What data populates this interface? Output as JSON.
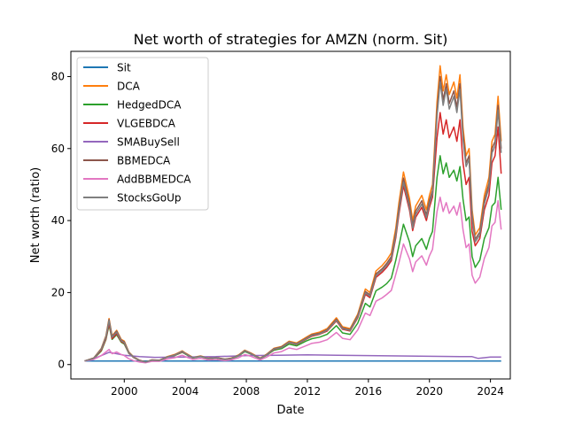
{
  "chart_data": {
    "type": "line",
    "title": "Net worth of strategies for AMZN (norm. Sit)",
    "xlabel": "Date",
    "ylabel": "Net worth (ratio)",
    "xlim": [
      1996.5,
      2025.3
    ],
    "ylim": [
      -4,
      87
    ],
    "xticks": [
      2000,
      2004,
      2008,
      2012,
      2016,
      2020,
      2024
    ],
    "xtick_labels": [
      "2000",
      "2004",
      "2008",
      "2012",
      "2016",
      "2020",
      "2024"
    ],
    "yticks": [
      0,
      20,
      40,
      60,
      80
    ],
    "ytick_labels": [
      "0",
      "20",
      "40",
      "60",
      "80"
    ],
    "grid": false,
    "legend": "upper-left",
    "series": [
      {
        "name": "Sit",
        "color": "#1f77b4",
        "x": [
          1997.4,
          1998.0,
          2002.0,
          2010.0,
          2018.0,
          2024.7
        ],
        "y": [
          1.0,
          1.0,
          1.0,
          1.0,
          1.0,
          1.0
        ]
      },
      {
        "name": "DCA",
        "color": "#ff7f0e",
        "x": [
          1997.4,
          1998.0,
          1998.5,
          1998.8,
          1999.0,
          1999.2,
          1999.5,
          1999.8,
          2000.0,
          2000.3,
          2000.6,
          2001.0,
          2001.4,
          2001.8,
          2002.3,
          2002.8,
          2003.3,
          2003.8,
          2004.0,
          2004.5,
          2005.0,
          2005.5,
          2006.0,
          2006.6,
          2007.0,
          2007.5,
          2007.9,
          2008.3,
          2008.9,
          2009.3,
          2009.8,
          2010.3,
          2010.8,
          2011.3,
          2011.9,
          2012.3,
          2012.8,
          2013.3,
          2013.9,
          2014.3,
          2014.8,
          2015.3,
          2015.8,
          2016.1,
          2016.5,
          2016.9,
          2017.2,
          2017.5,
          2017.8,
          2018.0,
          2018.3,
          2018.7,
          2018.9,
          2019.1,
          2019.5,
          2019.8,
          2020.0,
          2020.2,
          2020.5,
          2020.7,
          2020.9,
          2021.1,
          2021.3,
          2021.6,
          2021.8,
          2022.0,
          2022.2,
          2022.4,
          2022.6,
          2022.8,
          2023.0,
          2023.3,
          2023.6,
          2023.9,
          2024.1,
          2024.3,
          2024.5,
          2024.7
        ],
        "y": [
          1.0,
          1.8,
          4.5,
          8.0,
          12.8,
          8.0,
          9.5,
          7.0,
          6.5,
          3.5,
          2.2,
          1.2,
          0.7,
          1.3,
          1.2,
          2.2,
          2.8,
          3.8,
          3.2,
          2.0,
          2.4,
          1.8,
          2.0,
          1.5,
          1.8,
          2.7,
          4.0,
          3.2,
          1.8,
          2.8,
          4.5,
          5.0,
          6.5,
          6.0,
          7.5,
          8.5,
          9.0,
          10.0,
          13.0,
          10.5,
          10.0,
          14.0,
          21.0,
          20.0,
          26.0,
          27.5,
          29.0,
          31.0,
          38.0,
          45.0,
          53.5,
          46.0,
          40.0,
          44.0,
          47.0,
          43.0,
          47.0,
          50.0,
          73.0,
          83.0,
          76.0,
          80.5,
          75.0,
          78.5,
          74.0,
          80.5,
          66.0,
          58.0,
          60.0,
          43.0,
          36.0,
          38.0,
          47.0,
          52.0,
          62.0,
          64.0,
          74.5,
          62.0
        ]
      },
      {
        "name": "HedgedDCA",
        "color": "#2ca02c",
        "x": [
          1997.4,
          1998.0,
          1998.5,
          1998.8,
          1999.0,
          1999.2,
          1999.5,
          1999.8,
          2000.0,
          2000.3,
          2000.6,
          2001.0,
          2001.4,
          2001.8,
          2002.3,
          2002.8,
          2003.3,
          2003.8,
          2004.0,
          2004.5,
          2005.0,
          2005.5,
          2006.0,
          2006.6,
          2007.0,
          2007.5,
          2007.9,
          2008.3,
          2008.9,
          2009.3,
          2009.8,
          2010.3,
          2010.8,
          2011.3,
          2011.9,
          2012.3,
          2012.8,
          2013.3,
          2013.9,
          2014.3,
          2014.8,
          2015.3,
          2015.8,
          2016.1,
          2016.5,
          2016.9,
          2017.2,
          2017.5,
          2017.8,
          2018.0,
          2018.3,
          2018.7,
          2018.9,
          2019.1,
          2019.5,
          2019.8,
          2020.0,
          2020.2,
          2020.5,
          2020.7,
          2020.9,
          2021.1,
          2021.3,
          2021.6,
          2021.8,
          2022.0,
          2022.2,
          2022.4,
          2022.6,
          2022.8,
          2023.0,
          2023.3,
          2023.6,
          2023.9,
          2024.1,
          2024.3,
          2024.5,
          2024.7
        ],
        "y": [
          1.0,
          1.6,
          3.8,
          7.0,
          11.0,
          7.0,
          8.3,
          6.2,
          5.7,
          3.1,
          2.0,
          1.1,
          0.6,
          1.2,
          1.1,
          2.0,
          2.5,
          3.4,
          2.9,
          1.8,
          2.2,
          1.6,
          1.8,
          1.4,
          1.6,
          2.4,
          3.6,
          2.9,
          1.6,
          2.5,
          4.0,
          4.4,
          5.7,
          5.2,
          6.5,
          7.2,
          7.6,
          8.4,
          10.8,
          8.8,
          8.4,
          11.5,
          17.0,
          16.0,
          20.5,
          21.5,
          22.5,
          24.0,
          29.0,
          33.0,
          39.0,
          34.0,
          30.0,
          33.0,
          35.0,
          32.0,
          35.0,
          37.0,
          52.0,
          58.0,
          53.0,
          56.0,
          52.0,
          54.0,
          51.0,
          55.0,
          46.0,
          40.0,
          41.0,
          30.0,
          27.0,
          29.0,
          35.0,
          38.0,
          44.0,
          45.0,
          52.0,
          43.0
        ]
      },
      {
        "name": "VLGEBDCA",
        "color": "#d62728",
        "x": [
          1997.4,
          1998.0,
          1998.5,
          1998.8,
          1999.0,
          1999.2,
          1999.5,
          1999.8,
          2000.0,
          2000.3,
          2000.6,
          2001.0,
          2001.4,
          2001.8,
          2002.3,
          2002.8,
          2003.3,
          2003.8,
          2004.0,
          2004.5,
          2005.0,
          2005.5,
          2006.0,
          2006.6,
          2007.0,
          2007.5,
          2007.9,
          2008.3,
          2008.9,
          2009.3,
          2009.8,
          2010.3,
          2010.8,
          2011.3,
          2011.9,
          2012.3,
          2012.8,
          2013.3,
          2013.9,
          2014.3,
          2014.8,
          2015.3,
          2015.8,
          2016.1,
          2016.5,
          2016.9,
          2017.2,
          2017.5,
          2017.8,
          2018.0,
          2018.3,
          2018.7,
          2018.9,
          2019.1,
          2019.5,
          2019.8,
          2020.0,
          2020.2,
          2020.5,
          2020.7,
          2020.9,
          2021.1,
          2021.3,
          2021.6,
          2021.8,
          2022.0,
          2022.2,
          2022.4,
          2022.6,
          2022.8,
          2023.0,
          2023.3,
          2023.6,
          2023.9,
          2024.1,
          2024.3,
          2024.5,
          2024.7
        ],
        "y": [
          1.0,
          1.7,
          4.0,
          7.2,
          11.5,
          7.2,
          8.6,
          6.4,
          5.9,
          3.2,
          2.0,
          1.1,
          0.6,
          1.2,
          1.1,
          2.0,
          2.6,
          3.5,
          3.0,
          1.9,
          2.3,
          1.7,
          1.9,
          1.4,
          1.7,
          2.5,
          3.8,
          3.0,
          1.7,
          2.6,
          4.2,
          4.7,
          6.1,
          5.6,
          7.0,
          7.9,
          8.4,
          9.3,
          12.1,
          9.8,
          9.3,
          13.0,
          19.5,
          18.6,
          24.2,
          25.6,
          27.0,
          28.8,
          35.3,
          41.8,
          49.7,
          42.8,
          37.2,
          40.9,
          43.7,
          40.0,
          43.7,
          46.5,
          63.0,
          70.0,
          64.0,
          68.0,
          63.0,
          66.0,
          62.0,
          68.0,
          56.0,
          50.0,
          52.0,
          37.0,
          33.0,
          35.0,
          43.0,
          47.0,
          56.0,
          58.0,
          66.0,
          53.0
        ]
      },
      {
        "name": "SMABuySell",
        "color": "#9467bd",
        "x": [
          1997.4,
          1998.0,
          1998.5,
          1999.0,
          1999.5,
          2000.0,
          2001.0,
          2002.0,
          2004.0,
          2006.0,
          2008.0,
          2010.0,
          2012.0,
          2014.0,
          2016.0,
          2018.0,
          2020.0,
          2022.0,
          2022.8,
          2023.2,
          2024.0,
          2024.7
        ],
        "y": [
          1.0,
          1.6,
          2.5,
          3.4,
          3.0,
          2.6,
          2.2,
          2.0,
          2.1,
          2.2,
          2.5,
          2.6,
          2.7,
          2.6,
          2.5,
          2.4,
          2.3,
          2.2,
          2.2,
          1.7,
          2.1,
          2.1
        ]
      },
      {
        "name": "BBMEDCA",
        "color": "#8c564b",
        "x": [
          1997.4,
          1998.0,
          1998.5,
          1998.8,
          1999.0,
          1999.2,
          1999.5,
          1999.8,
          2000.0,
          2000.3,
          2000.6,
          2001.0,
          2001.4,
          2001.8,
          2002.3,
          2002.8,
          2003.3,
          2003.8,
          2004.0,
          2004.5,
          2005.0,
          2005.5,
          2006.0,
          2006.6,
          2007.0,
          2007.5,
          2007.9,
          2008.3,
          2008.9,
          2009.3,
          2009.8,
          2010.3,
          2010.8,
          2011.3,
          2011.9,
          2012.3,
          2012.8,
          2013.3,
          2013.9,
          2014.3,
          2014.8,
          2015.3,
          2015.8,
          2016.1,
          2016.5,
          2016.9,
          2017.2,
          2017.5,
          2017.8,
          2018.0,
          2018.3,
          2018.7,
          2018.9,
          2019.1,
          2019.5,
          2019.8,
          2020.0,
          2020.2,
          2020.5,
          2020.7,
          2020.9,
          2021.1,
          2021.3,
          2021.6,
          2021.8,
          2022.0,
          2022.2,
          2022.4,
          2022.6,
          2022.8,
          2023.0,
          2023.3,
          2023.6,
          2023.9,
          2024.1,
          2024.3,
          2024.5,
          2024.7
        ],
        "y": [
          1.0,
          1.8,
          4.4,
          7.8,
          12.5,
          7.8,
          9.3,
          6.8,
          6.3,
          3.4,
          2.1,
          1.2,
          0.7,
          1.3,
          1.2,
          2.1,
          2.7,
          3.7,
          3.1,
          1.9,
          2.3,
          1.7,
          1.9,
          1.5,
          1.7,
          2.6,
          3.9,
          3.1,
          1.7,
          2.7,
          4.4,
          4.9,
          6.3,
          5.8,
          7.3,
          8.3,
          8.7,
          9.7,
          12.6,
          10.2,
          9.7,
          13.6,
          20.3,
          19.4,
          25.2,
          26.6,
          28.1,
          30.0,
          36.8,
          43.5,
          51.8,
          44.5,
          38.7,
          42.6,
          45.5,
          41.6,
          45.5,
          48.4,
          70.5,
          80.0,
          73.5,
          78.0,
          72.5,
          76.0,
          71.5,
          78.0,
          64.0,
          56.0,
          58.0,
          41.5,
          34.8,
          36.8,
          45.5,
          50.3,
          60.0,
          62.0,
          72.0,
          60.0
        ]
      },
      {
        "name": "AddBBMEDCA",
        "color": "#e377c2",
        "x": [
          1997.4,
          1998.0,
          1998.5,
          1998.8,
          1999.0,
          1999.2,
          1999.5,
          1999.8,
          2000.0,
          2000.3,
          2000.6,
          2001.0,
          2001.4,
          2001.8,
          2002.3,
          2002.8,
          2003.3,
          2003.8,
          2004.0,
          2004.5,
          2005.0,
          2005.5,
          2006.0,
          2006.6,
          2007.0,
          2007.5,
          2007.9,
          2008.3,
          2008.9,
          2009.3,
          2009.8,
          2010.3,
          2010.8,
          2011.3,
          2011.9,
          2012.3,
          2012.8,
          2013.3,
          2013.9,
          2014.3,
          2014.8,
          2015.3,
          2015.8,
          2016.1,
          2016.5,
          2016.9,
          2017.2,
          2017.5,
          2017.8,
          2018.0,
          2018.3,
          2018.7,
          2018.9,
          2019.1,
          2019.5,
          2019.8,
          2020.0,
          2020.2,
          2020.5,
          2020.7,
          2020.9,
          2021.1,
          2021.3,
          2021.6,
          2021.8,
          2022.0,
          2022.2,
          2022.4,
          2022.6,
          2022.8,
          2023.0,
          2023.3,
          2023.6,
          2023.9,
          2024.1,
          2024.3,
          2024.5,
          2024.7
        ],
        "y": [
          1.0,
          1.4,
          2.5,
          3.5,
          4.2,
          3.0,
          3.5,
          2.8,
          2.5,
          1.6,
          1.1,
          0.7,
          0.5,
          0.9,
          0.9,
          1.5,
          1.9,
          2.6,
          2.2,
          1.4,
          1.7,
          1.3,
          1.4,
          1.1,
          1.3,
          1.9,
          2.8,
          2.3,
          1.3,
          2.0,
          3.2,
          3.6,
          4.6,
          4.2,
          5.2,
          5.9,
          6.2,
          6.9,
          8.9,
          7.3,
          6.9,
          9.6,
          14.3,
          13.6,
          17.6,
          18.5,
          19.5,
          20.6,
          25.1,
          28.3,
          33.5,
          29.3,
          25.8,
          28.5,
          30.2,
          27.6,
          30.2,
          32.0,
          42.5,
          46.5,
          42.5,
          45.0,
          42.0,
          44.0,
          41.5,
          45.0,
          37.5,
          32.5,
          33.5,
          24.8,
          22.6,
          24.3,
          29.5,
          32.5,
          38.5,
          39.5,
          45.5,
          37.5
        ]
      },
      {
        "name": "StocksGoUp",
        "color": "#7f7f7f",
        "x": [
          1997.4,
          1998.0,
          1998.5,
          1998.8,
          1999.0,
          1999.2,
          1999.5,
          1999.8,
          2000.0,
          2000.3,
          2000.6,
          2001.0,
          2001.4,
          2001.8,
          2002.3,
          2002.8,
          2003.3,
          2003.8,
          2004.0,
          2004.5,
          2005.0,
          2005.5,
          2006.0,
          2006.6,
          2007.0,
          2007.5,
          2007.9,
          2008.3,
          2008.9,
          2009.3,
          2009.8,
          2010.3,
          2010.8,
          2011.3,
          2011.9,
          2012.3,
          2012.8,
          2013.3,
          2013.9,
          2014.3,
          2014.8,
          2015.3,
          2015.8,
          2016.1,
          2016.5,
          2016.9,
          2017.2,
          2017.5,
          2017.8,
          2018.0,
          2018.3,
          2018.7,
          2018.9,
          2019.1,
          2019.5,
          2019.8,
          2020.0,
          2020.2,
          2020.5,
          2020.7,
          2020.9,
          2021.1,
          2021.3,
          2021.6,
          2021.8,
          2022.0,
          2022.2,
          2022.4,
          2022.6,
          2022.8,
          2023.0,
          2023.3,
          2023.6,
          2023.9,
          2024.1,
          2024.3,
          2024.5,
          2024.7
        ],
        "y": [
          1.0,
          1.7,
          4.3,
          7.6,
          12.2,
          7.6,
          9.0,
          6.6,
          6.1,
          3.3,
          2.1,
          1.1,
          0.7,
          1.2,
          1.1,
          2.1,
          2.6,
          3.6,
          3.0,
          1.9,
          2.3,
          1.7,
          1.9,
          1.4,
          1.7,
          2.5,
          3.8,
          3.0,
          1.7,
          2.6,
          4.3,
          4.7,
          6.2,
          5.7,
          7.1,
          8.1,
          8.5,
          9.5,
          12.3,
          10.0,
          9.5,
          13.3,
          19.9,
          19.0,
          24.7,
          26.1,
          27.5,
          29.4,
          36.0,
          42.7,
          50.7,
          43.6,
          37.9,
          41.7,
          44.6,
          40.8,
          44.6,
          47.4,
          69.0,
          78.5,
          72.0,
          76.5,
          71.0,
          74.5,
          70.0,
          76.5,
          62.5,
          55.0,
          57.0,
          40.8,
          34.1,
          36.0,
          44.6,
          49.3,
          58.8,
          60.7,
          70.7,
          58.8
        ]
      }
    ]
  }
}
